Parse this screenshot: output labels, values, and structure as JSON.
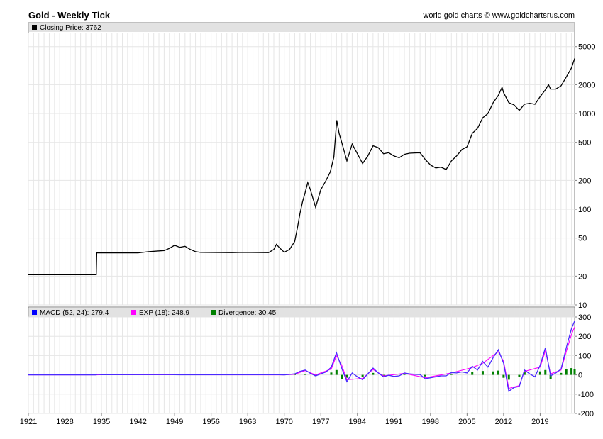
{
  "header": {
    "title": "Gold - Weekly Tick",
    "source": "world gold charts © www.goldchartsrus.com"
  },
  "chart_data": [
    {
      "type": "line",
      "panel": "price",
      "legend": [
        {
          "label": "Closing Price: 3762",
          "color": "#000000"
        }
      ],
      "series": [
        {
          "name": "Closing Price",
          "color": "#000000",
          "points": [
            [
              1921,
              20.67
            ],
            [
              1934,
              20.67
            ],
            [
              1934.1,
              35
            ],
            [
              1940,
              35
            ],
            [
              1942,
              35
            ],
            [
              1944,
              36
            ],
            [
              1947,
              37
            ],
            [
              1948,
              39
            ],
            [
              1949,
              42
            ],
            [
              1950,
              40
            ],
            [
              1951,
              41
            ],
            [
              1952,
              38
            ],
            [
              1953,
              36
            ],
            [
              1954,
              35.4
            ],
            [
              1960,
              35.2
            ],
            [
              1962,
              35.4
            ],
            [
              1967,
              35.2
            ],
            [
              1968,
              38
            ],
            [
              1968.5,
              43
            ],
            [
              1969,
              40
            ],
            [
              1970,
              35.5
            ],
            [
              1971,
              38
            ],
            [
              1972,
              46
            ],
            [
              1972.5,
              63
            ],
            [
              1973,
              90
            ],
            [
              1973.5,
              120
            ],
            [
              1974,
              150
            ],
            [
              1974.5,
              190
            ],
            [
              1975,
              160
            ],
            [
              1976,
              105
            ],
            [
              1976.5,
              130
            ],
            [
              1977,
              160
            ],
            [
              1978,
              200
            ],
            [
              1978.8,
              245
            ],
            [
              1979.5,
              350
            ],
            [
              1980.05,
              850
            ],
            [
              1980.5,
              620
            ],
            [
              1981,
              500
            ],
            [
              1982,
              320
            ],
            [
              1983,
              480
            ],
            [
              1984,
              380
            ],
            [
              1985,
              300
            ],
            [
              1986,
              360
            ],
            [
              1987,
              460
            ],
            [
              1988,
              440
            ],
            [
              1989,
              380
            ],
            [
              1990,
              390
            ],
            [
              1991,
              360
            ],
            [
              1992,
              345
            ],
            [
              1993,
              375
            ],
            [
              1994,
              385
            ],
            [
              1995,
              388
            ],
            [
              1996,
              390
            ],
            [
              1997,
              330
            ],
            [
              1998,
              290
            ],
            [
              1999,
              270
            ],
            [
              2000,
              275
            ],
            [
              2001,
              260
            ],
            [
              2002,
              320
            ],
            [
              2003,
              360
            ],
            [
              2004,
              420
            ],
            [
              2005,
              450
            ],
            [
              2006,
              620
            ],
            [
              2007,
              700
            ],
            [
              2008,
              900
            ],
            [
              2009,
              1000
            ],
            [
              2010,
              1300
            ],
            [
              2011,
              1550
            ],
            [
              2011.7,
              1880
            ],
            [
              2012,
              1650
            ],
            [
              2013,
              1300
            ],
            [
              2014,
              1230
            ],
            [
              2015,
              1080
            ],
            [
              2016,
              1250
            ],
            [
              2017,
              1280
            ],
            [
              2018,
              1250
            ],
            [
              2019,
              1500
            ],
            [
              2020,
              1770
            ],
            [
              2020.6,
              2000
            ],
            [
              2021,
              1800
            ],
            [
              2022,
              1800
            ],
            [
              2023,
              1950
            ],
            [
              2024,
              2400
            ],
            [
              2025,
              3000
            ],
            [
              2025.6,
              3762
            ]
          ]
        }
      ],
      "y_scale": "log",
      "ylim": [
        10,
        7000
      ],
      "y_ticks": [
        10,
        20,
        50,
        100,
        200,
        500,
        1000,
        2000,
        5000
      ],
      "xlim": [
        1921,
        2025.6
      ],
      "grid": true
    },
    {
      "type": "line",
      "panel": "macd",
      "legend": [
        {
          "label": "MACD (52, 24): 279.4",
          "color": "#0000ff"
        },
        {
          "label": "EXP (18): 248.9",
          "color": "#ff00ff"
        },
        {
          "label": "Divergence: 30.45",
          "color": "#008000"
        }
      ],
      "series": [
        {
          "name": "MACD (52, 24)",
          "color": "#0000ff",
          "points": [
            [
              1921,
              0
            ],
            [
              1934,
              0
            ],
            [
              1934.2,
              3
            ],
            [
              1935,
              1
            ],
            [
              1948,
              1.5
            ],
            [
              1950,
              0.5
            ],
            [
              1969,
              1
            ],
            [
              1970,
              0
            ],
            [
              1972,
              5
            ],
            [
              1973,
              18
            ],
            [
              1974,
              25
            ],
            [
              1975,
              8
            ],
            [
              1976,
              -5
            ],
            [
              1977,
              5
            ],
            [
              1978,
              15
            ],
            [
              1979,
              40
            ],
            [
              1980,
              115
            ],
            [
              1981,
              35
            ],
            [
              1982,
              -35
            ],
            [
              1983,
              10
            ],
            [
              1984,
              -10
            ],
            [
              1985,
              -25
            ],
            [
              1986,
              5
            ],
            [
              1987,
              35
            ],
            [
              1988,
              10
            ],
            [
              1989,
              -10
            ],
            [
              1990,
              -2
            ],
            [
              1991,
              -8
            ],
            [
              1992,
              -5
            ],
            [
              1993,
              10
            ],
            [
              1994,
              5
            ],
            [
              1995,
              3
            ],
            [
              1996,
              2
            ],
            [
              1997,
              -20
            ],
            [
              1998,
              -15
            ],
            [
              1999,
              -10
            ],
            [
              2000,
              -5
            ],
            [
              2001,
              -5
            ],
            [
              2002,
              12
            ],
            [
              2003,
              10
            ],
            [
              2004,
              15
            ],
            [
              2005,
              10
            ],
            [
              2006,
              45
            ],
            [
              2007,
              25
            ],
            [
              2008,
              70
            ],
            [
              2009,
              40
            ],
            [
              2010,
              90
            ],
            [
              2011,
              130
            ],
            [
              2012,
              60
            ],
            [
              2013,
              -85
            ],
            [
              2014,
              -65
            ],
            [
              2015,
              -60
            ],
            [
              2016,
              25
            ],
            [
              2017,
              5
            ],
            [
              2018,
              -10
            ],
            [
              2019,
              50
            ],
            [
              2020,
              140
            ],
            [
              2021,
              -5
            ],
            [
              2022,
              10
            ],
            [
              2023,
              30
            ],
            [
              2024,
              140
            ],
            [
              2025,
              240
            ],
            [
              2025.6,
              279.4
            ]
          ]
        },
        {
          "name": "EXP (18)",
          "color": "#ff00ff",
          "points": [
            [
              1921,
              0
            ],
            [
              1934,
              0
            ],
            [
              1935,
              1
            ],
            [
              1970,
              0
            ],
            [
              1972,
              3
            ],
            [
              1974,
              22
            ],
            [
              1976,
              0
            ],
            [
              1979,
              30
            ],
            [
              1980,
              100
            ],
            [
              1981,
              50
            ],
            [
              1982,
              -25
            ],
            [
              1985,
              -18
            ],
            [
              1987,
              28
            ],
            [
              1989,
              -5
            ],
            [
              1993,
              8
            ],
            [
              1997,
              -15
            ],
            [
              2002,
              10
            ],
            [
              2006,
              38
            ],
            [
              2008,
              60
            ],
            [
              2011,
              120
            ],
            [
              2012,
              70
            ],
            [
              2013,
              -70
            ],
            [
              2015,
              -55
            ],
            [
              2016,
              18
            ],
            [
              2019,
              40
            ],
            [
              2020,
              125
            ],
            [
              2021,
              5
            ],
            [
              2023,
              25
            ],
            [
              2024,
              120
            ],
            [
              2025,
              210
            ],
            [
              2025.6,
              248.9
            ]
          ]
        },
        {
          "name": "Divergence",
          "color": "#008000",
          "type": "bar",
          "points": [
            [
              1972,
              3
            ],
            [
              1974,
              5
            ],
            [
              1976,
              -6
            ],
            [
              1979,
              12
            ],
            [
              1980,
              25
            ],
            [
              1981,
              -20
            ],
            [
              1982,
              -15
            ],
            [
              1985,
              -10
            ],
            [
              1987,
              10
            ],
            [
              1989,
              -8
            ],
            [
              1993,
              5
            ],
            [
              1997,
              -8
            ],
            [
              2002,
              6
            ],
            [
              2006,
              15
            ],
            [
              2008,
              20
            ],
            [
              2010,
              18
            ],
            [
              2011,
              22
            ],
            [
              2012,
              -15
            ],
            [
              2013,
              -25
            ],
            [
              2015,
              -12
            ],
            [
              2016,
              15
            ],
            [
              2019,
              18
            ],
            [
              2020,
              25
            ],
            [
              2021,
              -20
            ],
            [
              2023,
              10
            ],
            [
              2024,
              28
            ],
            [
              2025,
              35
            ],
            [
              2025.6,
              30.45
            ]
          ]
        }
      ],
      "y_scale": "linear",
      "ylim": [
        -200,
        300
      ],
      "y_ticks": [
        -200,
        -100,
        0,
        100,
        200,
        300
      ],
      "xlim": [
        1921,
        2025.6
      ],
      "grid": true
    }
  ],
  "x_axis": {
    "ticks": [
      "1921",
      "1928",
      "1935",
      "1942",
      "1949",
      "1956",
      "1963",
      "1970",
      "1977",
      "1984",
      "1991",
      "1998",
      "2005",
      "2012",
      "2019"
    ],
    "tick_values": [
      1921,
      1928,
      1935,
      1942,
      1949,
      1956,
      1963,
      1970,
      1977,
      1984,
      1991,
      1998,
      2005,
      2012,
      2019
    ]
  }
}
